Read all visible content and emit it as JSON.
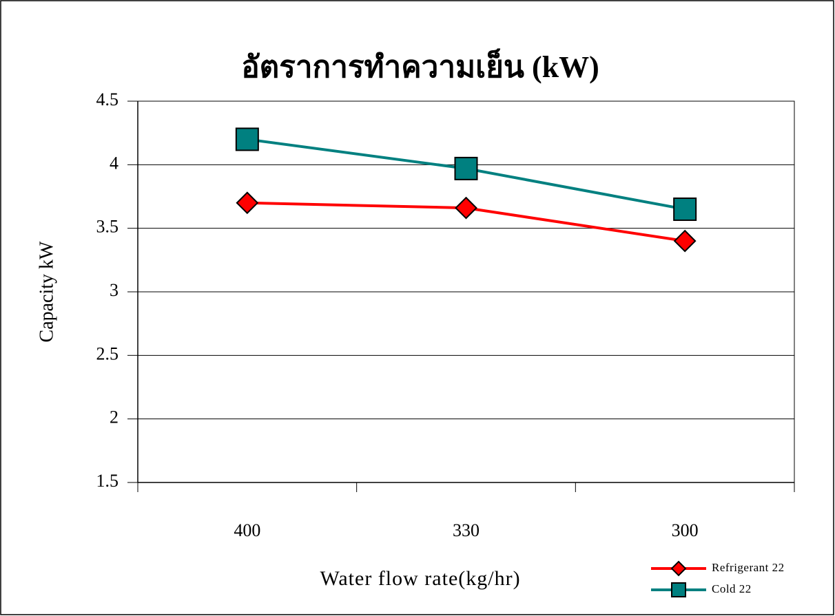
{
  "chart_data": {
    "type": "line",
    "title": "อัตราการทำความเย็น (kW)",
    "x_label": "Water flow rate(kg/hr)",
    "y_label": "Capacity kW",
    "categories": [
      "400",
      "330",
      "300"
    ],
    "series": [
      {
        "name": "Refrigerant 22",
        "color": "#ff0000",
        "marker": "diamond",
        "values": [
          3.7,
          3.66,
          3.4
        ]
      },
      {
        "name": "Cold 22",
        "color": "#008080",
        "marker": "square",
        "values": [
          4.2,
          3.97,
          3.65
        ]
      }
    ],
    "ylim": [
      1.5,
      4.5
    ],
    "yticks": [
      1.5,
      2,
      2.5,
      3,
      3.5,
      4,
      4.5
    ],
    "grid": true,
    "legend": "lower right"
  }
}
